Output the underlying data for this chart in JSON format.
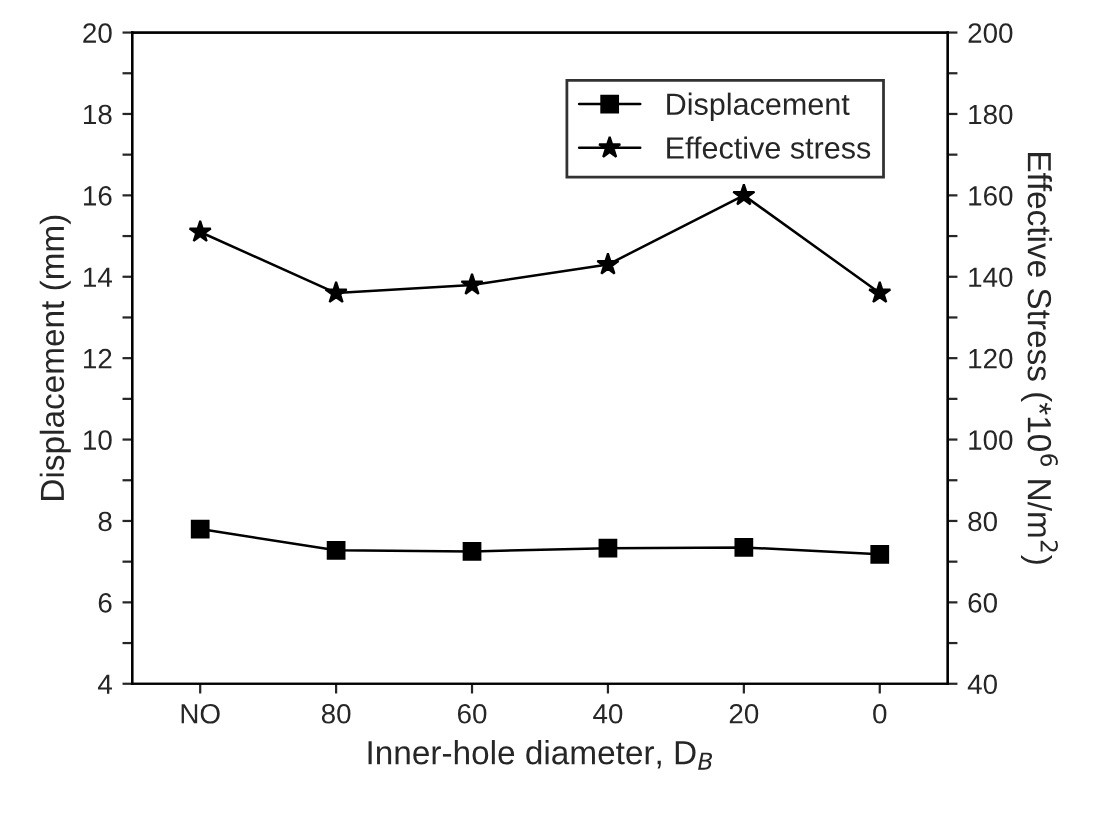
{
  "chart_data": {
    "type": "line",
    "categories": [
      "NO",
      "80",
      "60",
      "40",
      "20",
      "0"
    ],
    "xlabel": "Inner-hole diameter, D$_{B}$",
    "ylabel": "Displacement (mm)",
    "y2label": "Effective Stress (*10$^{6}$ N/m$^{2}$)",
    "series": [
      {
        "name": "Displacement",
        "color": "#000000",
        "marker": "square",
        "values": [
          7.8,
          7.28,
          7.25,
          7.33,
          7.35,
          7.18
        ]
      },
      {
        "name": "Effective stress",
        "color": "#000000",
        "marker": "star",
        "axis": "y2",
        "values": [
          151,
          136,
          138,
          143,
          160,
          136
        ]
      }
    ],
    "ylim": [
      4,
      20
    ],
    "yticks": [
      4,
      {
        "value": 5,
        "label": null
      },
      6,
      {
        "value": 7,
        "label": null
      },
      8,
      {
        "value": 9,
        "label": null
      },
      10,
      {
        "value": 11,
        "label": null
      },
      12,
      {
        "value": 13,
        "label": null
      },
      14,
      {
        "value": 15,
        "label": null
      },
      16,
      {
        "value": 17,
        "label": null
      },
      18,
      {
        "value": 19,
        "label": null
      },
      20
    ],
    "y2lim": [
      40,
      200
    ],
    "y2ticks": [
      40,
      {
        "value": 50,
        "label": null
      },
      60,
      {
        "value": 70,
        "label": null
      },
      80,
      {
        "value": 90,
        "label": null
      },
      100,
      {
        "value": 110,
        "label": null
      },
      120,
      {
        "value": 130,
        "label": null
      },
      140,
      {
        "value": 150,
        "label": null
      },
      160,
      {
        "value": 170,
        "label": null
      },
      180,
      {
        "value": 190,
        "label": null
      },
      200
    ],
    "grid": false,
    "legend": "top right",
    "line_style": "solid"
  }
}
